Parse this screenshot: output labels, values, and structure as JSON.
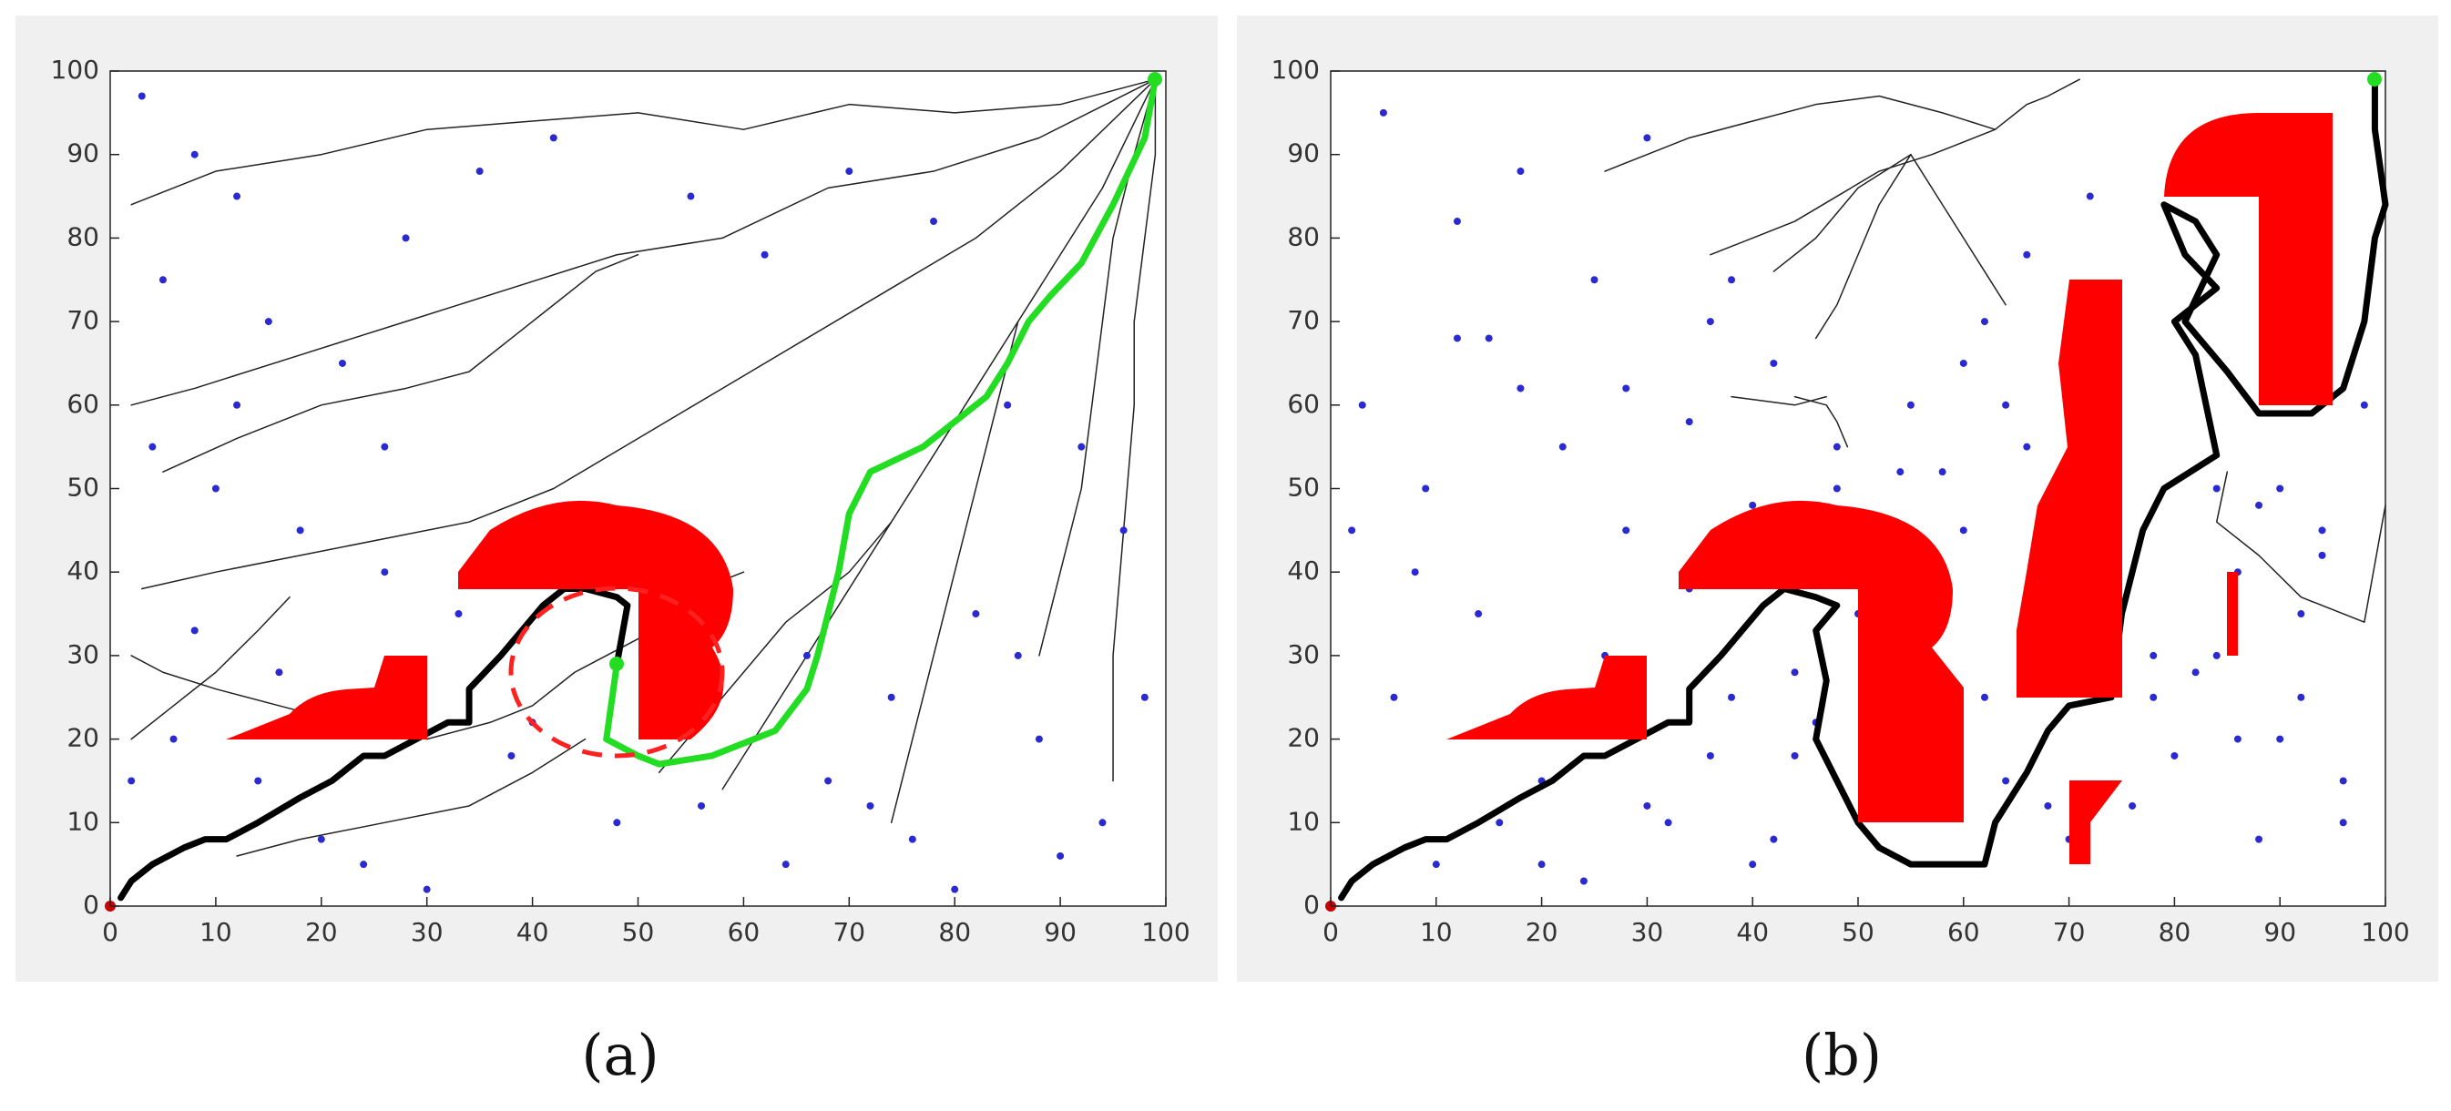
{
  "chart_data": [
    {
      "type": "scatter",
      "label": "(a)",
      "xlim": [
        0,
        100
      ],
      "ylim": [
        0,
        100
      ],
      "xticks": [
        0,
        10,
        20,
        30,
        40,
        50,
        60,
        70,
        80,
        90,
        100
      ],
      "yticks": [
        0,
        10,
        20,
        30,
        40,
        50,
        60,
        70,
        80,
        90,
        100
      ],
      "series": [
        {
          "type": "line",
          "color": "#222222",
          "width": 1.5,
          "x": [
            99,
            90,
            80,
            70,
            60,
            50,
            40,
            30,
            20,
            10,
            2
          ],
          "values": [
            99,
            96,
            95,
            96,
            93,
            95,
            94,
            93,
            90,
            88,
            84
          ]
        },
        {
          "type": "line",
          "color": "#222222",
          "width": 1.5,
          "x": [
            99,
            88,
            78,
            68,
            58,
            48,
            38,
            28,
            18,
            8,
            2
          ],
          "values": [
            99,
            92,
            88,
            86,
            80,
            78,
            74,
            70,
            66,
            62,
            60
          ]
        },
        {
          "type": "line",
          "color": "#222222",
          "width": 1.5,
          "x": [
            99,
            90,
            82,
            74,
            66,
            58,
            50,
            42,
            34,
            26,
            18,
            10,
            3
          ],
          "values": [
            99,
            88,
            80,
            74,
            68,
            62,
            56,
            50,
            46,
            44,
            42,
            40,
            38
          ]
        },
        {
          "type": "line",
          "color": "#222222",
          "width": 1.5,
          "x": [
            99,
            94,
            90,
            86,
            82,
            78,
            74,
            70,
            66,
            62,
            58
          ],
          "values": [
            99,
            86,
            78,
            70,
            62,
            54,
            46,
            38,
            30,
            22,
            14
          ]
        },
        {
          "type": "line",
          "color": "#222222",
          "width": 1.5,
          "x": [
            99,
            97,
            95,
            94,
            93,
            92,
            90,
            88
          ],
          "values": [
            99,
            90,
            80,
            70,
            60,
            50,
            40,
            30
          ]
        },
        {
          "type": "line",
          "color": "#222222",
          "width": 1.5,
          "x": [
            99,
            99,
            98,
            97,
            97,
            96,
            95,
            95
          ],
          "values": [
            99,
            90,
            80,
            70,
            60,
            45,
            30,
            15
          ]
        },
        {
          "type": "line",
          "color": "#222222",
          "width": 1.5,
          "x": [
            86,
            84,
            82,
            80,
            78,
            76,
            74
          ],
          "values": [
            70,
            60,
            50,
            40,
            30,
            20,
            10
          ]
        },
        {
          "type": "line",
          "color": "#222222",
          "width": 1.5,
          "x": [
            60,
            56,
            50,
            44,
            40,
            36,
            30,
            22,
            16,
            10,
            5,
            2
          ],
          "values": [
            40,
            38,
            32,
            28,
            24,
            22,
            20,
            22,
            24,
            26,
            28,
            30
          ]
        },
        {
          "type": "line",
          "color": "#222222",
          "width": 1.5,
          "x": [
            45,
            40,
            34,
            26,
            18,
            12
          ],
          "values": [
            20,
            16,
            12,
            10,
            8,
            6
          ]
        },
        {
          "type": "line",
          "color": "#222222",
          "width": 1.5,
          "x": [
            74,
            70,
            64,
            60,
            56,
            52
          ],
          "values": [
            46,
            40,
            34,
            28,
            22,
            16
          ]
        },
        {
          "type": "line",
          "color": "#222222",
          "width": 1.5,
          "x": [
            50,
            46,
            42,
            38,
            34,
            28,
            20,
            12,
            5
          ],
          "values": [
            78,
            76,
            72,
            68,
            64,
            62,
            60,
            56,
            52
          ]
        },
        {
          "type": "line",
          "color": "#222222",
          "width": 1.5,
          "x": [
            17,
            14,
            10,
            6,
            2
          ],
          "values": [
            37,
            33,
            28,
            24,
            20
          ]
        },
        {
          "type": "scatter",
          "color": "#2a2ad0",
          "x": [
            3,
            8,
            12,
            5,
            15,
            22,
            28,
            35,
            42,
            55,
            62,
            70,
            78,
            85,
            92,
            96,
            4,
            10,
            18,
            26,
            33,
            44,
            58,
            66,
            74,
            82,
            88,
            94,
            6,
            14,
            24,
            38,
            48,
            64,
            72,
            80,
            90,
            2,
            20,
            30,
            8,
            16,
            40,
            56,
            68,
            76,
            86,
            98,
            12,
            26
          ],
          "values": [
            97,
            90,
            85,
            75,
            70,
            65,
            80,
            88,
            92,
            85,
            78,
            88,
            82,
            60,
            55,
            45,
            55,
            50,
            45,
            40,
            35,
            42,
            40,
            30,
            25,
            35,
            20,
            10,
            20,
            15,
            5,
            18,
            10,
            5,
            12,
            2,
            6,
            15,
            8,
            2,
            33,
            28,
            22,
            12,
            15,
            8,
            30,
            25,
            60,
            55
          ]
        },
        {
          "type": "line",
          "color": "#000000",
          "width": 7,
          "x": [
            1,
            2,
            4,
            7,
            9,
            11,
            14,
            18,
            21,
            24,
            26,
            29,
            32,
            34,
            34,
            37,
            39,
            41,
            43,
            45,
            48,
            49,
            48
          ],
          "values": [
            1,
            3,
            5,
            7,
            8,
            8,
            10,
            13,
            15,
            18,
            18,
            20,
            22,
            22,
            26,
            30,
            33,
            36,
            38,
            38,
            37,
            36,
            29
          ]
        },
        {
          "type": "line",
          "color": "#22dd22",
          "width": 7,
          "x": [
            48,
            47,
            50,
            52,
            57,
            63,
            66,
            67,
            69,
            70,
            72,
            77,
            80,
            83,
            85,
            87,
            89,
            92,
            95,
            98,
            99
          ],
          "values": [
            29,
            20,
            18,
            17,
            18,
            21,
            26,
            30,
            40,
            47,
            52,
            55,
            58,
            61,
            65,
            70,
            73,
            77,
            84,
            92,
            99
          ]
        }
      ]
    },
    {
      "type": "scatter",
      "label": "(b)",
      "xlim": [
        0,
        100
      ],
      "ylim": [
        0,
        100
      ],
      "xticks": [
        0,
        10,
        20,
        30,
        40,
        50,
        60,
        70,
        80,
        90,
        100
      ],
      "yticks": [
        0,
        10,
        20,
        30,
        40,
        50,
        60,
        70,
        80,
        90,
        100
      ],
      "series": [
        {
          "type": "line",
          "color": "#222222",
          "width": 1.5,
          "x": [
            63,
            58,
            52,
            46,
            40,
            34,
            30,
            26
          ],
          "values": [
            93,
            95,
            97,
            96,
            94,
            92,
            90,
            88
          ]
        },
        {
          "type": "line",
          "color": "#222222",
          "width": 1.5,
          "x": [
            63,
            57,
            52,
            48,
            44,
            40,
            36
          ],
          "values": [
            93,
            90,
            88,
            85,
            82,
            80,
            78
          ]
        },
        {
          "type": "line",
          "color": "#222222",
          "width": 1.5,
          "x": [
            55,
            52,
            50,
            48,
            46
          ],
          "values": [
            90,
            84,
            78,
            72,
            68
          ]
        },
        {
          "type": "line",
          "color": "#222222",
          "width": 1.5,
          "x": [
            55,
            58,
            60,
            62,
            64
          ],
          "values": [
            90,
            84,
            80,
            76,
            72
          ]
        },
        {
          "type": "line",
          "color": "#222222",
          "width": 1.5,
          "x": [
            55,
            50,
            46,
            42
          ],
          "values": [
            90,
            86,
            80,
            76
          ]
        },
        {
          "type": "line",
          "color": "#222222",
          "width": 1.5,
          "x": [
            71,
            68,
            66,
            63
          ],
          "values": [
            99,
            97,
            96,
            93
          ]
        },
        {
          "type": "line",
          "color": "#222222",
          "width": 1.5,
          "x": [
            44,
            47,
            48,
            49
          ],
          "values": [
            61,
            60,
            58,
            55
          ]
        },
        {
          "type": "line",
          "color": "#222222",
          "width": 1.5,
          "x": [
            38,
            44,
            47
          ],
          "values": [
            61,
            60,
            61
          ]
        },
        {
          "type": "line",
          "color": "#222222",
          "width": 1.5,
          "x": [
            85,
            84,
            88,
            92,
            98,
            100
          ],
          "values": [
            52,
            46,
            42,
            37,
            34,
            48
          ]
        },
        {
          "type": "scatter",
          "color": "#2a2ad0",
          "x": [
            5,
            12,
            18,
            25,
            30,
            36,
            42,
            48,
            55,
            60,
            66,
            72,
            78,
            84,
            90,
            96,
            3,
            9,
            15,
            22,
            28,
            34,
            40,
            46,
            52,
            58,
            64,
            70,
            76,
            82,
            88,
            94,
            6,
            14,
            20,
            26,
            32,
            38,
            44,
            50,
            56,
            62,
            68,
            74,
            80,
            86,
            92,
            98,
            2,
            10,
            16,
            24,
            30,
            36,
            42,
            48,
            54,
            60,
            66,
            72,
            78,
            84,
            90,
            96,
            8,
            18,
            28,
            38,
            58,
            64,
            86,
            92,
            20,
            40,
            44,
            88,
            94,
            12,
            34,
            62
          ],
          "values": [
            95,
            82,
            88,
            75,
            92,
            70,
            65,
            55,
            60,
            45,
            78,
            40,
            30,
            50,
            20,
            10,
            60,
            50,
            68,
            55,
            45,
            58,
            48,
            22,
            30,
            40,
            15,
            8,
            12,
            28,
            8,
            45,
            25,
            35,
            15,
            30,
            10,
            25,
            18,
            35,
            38,
            25,
            12,
            45,
            18,
            20,
            35,
            60,
            45,
            5,
            10,
            3,
            12,
            18,
            8,
            50,
            52,
            65,
            55,
            85,
            25,
            30,
            50,
            15,
            40,
            62,
            62,
            75,
            52,
            60,
            40,
            25,
            5,
            5,
            28,
            48,
            42,
            68,
            38,
            70
          ]
        },
        {
          "type": "line",
          "color": "#000000",
          "width": 7,
          "x": [
            1,
            2,
            4,
            7,
            9,
            11,
            14,
            18,
            21,
            24,
            26,
            29,
            32,
            34,
            34,
            37,
            39,
            41,
            43,
            46,
            48,
            46,
            47,
            46,
            48,
            50,
            52,
            55,
            62,
            63,
            66,
            68,
            70,
            74,
            75,
            77,
            79,
            84,
            83,
            82,
            80,
            84,
            81,
            79,
            82,
            84,
            81,
            85,
            88,
            93,
            96,
            98,
            99,
            100,
            99,
            99
          ],
          "values": [
            1,
            3,
            5,
            7,
            8,
            8,
            10,
            13,
            15,
            18,
            18,
            20,
            22,
            22,
            26,
            30,
            33,
            36,
            38,
            37,
            36,
            33,
            27,
            20,
            15,
            10,
            7,
            5,
            5,
            10,
            16,
            21,
            24,
            25,
            35,
            45,
            50,
            54,
            60,
            66,
            70,
            74,
            78,
            84,
            82,
            78,
            70,
            64,
            59,
            59,
            62,
            70,
            80,
            84,
            93,
            99
          ]
        }
      ]
    }
  ]
}
